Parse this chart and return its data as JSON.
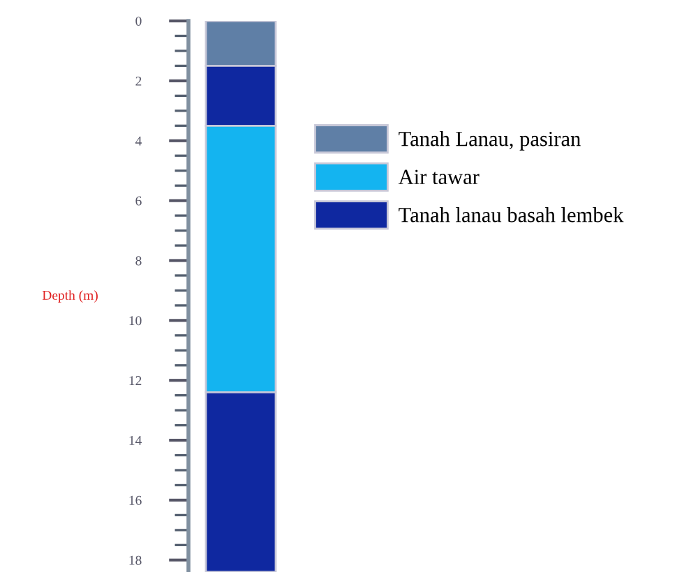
{
  "chart_data": {
    "type": "bar",
    "stacked": true,
    "categories": [
      null
    ],
    "ylabel": "Depth (m)",
    "ylim": [
      18.4,
      0
    ],
    "yticks": [
      0,
      2,
      4,
      6,
      8,
      10,
      12,
      14,
      16,
      18
    ],
    "grid": false,
    "legend": "right",
    "series": [
      {
        "name": "Tanah Lanau, pasiran",
        "color": "#5f7fa6",
        "values": [
          1.5
        ]
      },
      {
        "color": "#0f28a0",
        "values": [
          2.0
        ]
      },
      {
        "name": "Air tawar",
        "color": "#14b4f0",
        "values": [
          8.9
        ]
      },
      {
        "name": "Tanah lanau basah lembek",
        "color": "#0f28a0",
        "values": [
          6.0
        ]
      }
    ]
  }
}
